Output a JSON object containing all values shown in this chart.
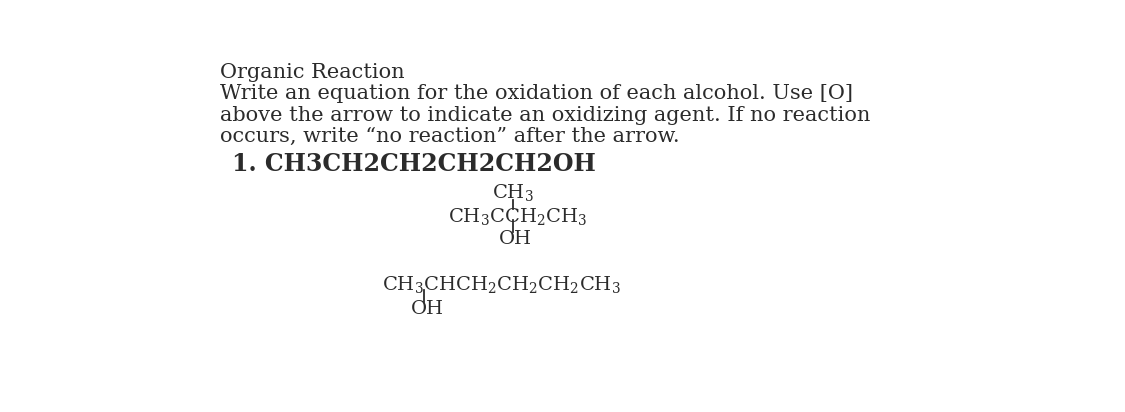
{
  "title": "Organic Reaction",
  "instr_line1": "Write an equation for the oxidation of each alcohol. Use [O]",
  "instr_line2": "above the arrow to indicate an oxidizing agent. If no reaction",
  "instr_line3": "occurs, write “no reaction” after the arrow.",
  "item1": "1. CH3CH2CH2CH2CH2OH",
  "background": "#ffffff",
  "text_color": "#2b2b2b",
  "title_fontsize": 15,
  "body_fontsize": 15,
  "item_fontsize": 17,
  "chem_fontsize": 14,
  "font_family": "DejaVu Serif"
}
